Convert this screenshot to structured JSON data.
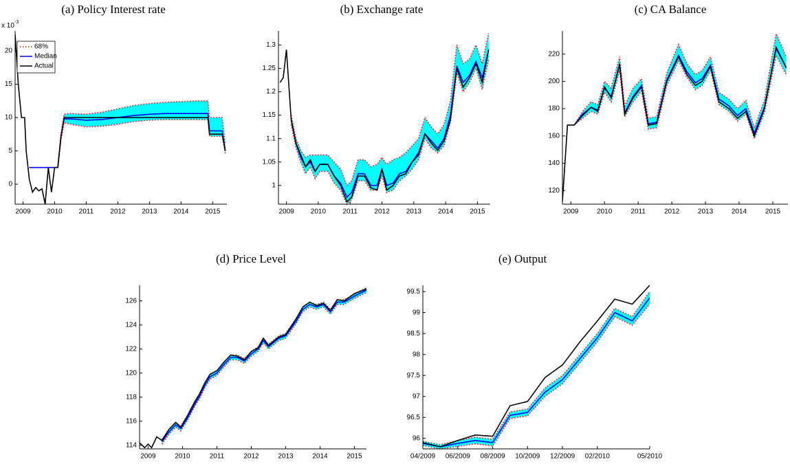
{
  "chart_data": [
    {
      "type": "line",
      "title": "(a) Policy Interest rate",
      "y_multiplier": {
        "base": "x 10",
        "exponent": "-3"
      },
      "legend": "upper left",
      "x": [
        2008.75,
        2008.85,
        2008.95,
        2009.05,
        2009.1,
        2009.2,
        2009.3,
        2009.4,
        2009.5,
        2009.6,
        2009.7,
        2009.8,
        2009.9,
        2010.0,
        2010.1,
        2010.2,
        2010.3,
        2010.5,
        2011.0,
        2011.5,
        2012.0,
        2012.5,
        2013.0,
        2013.5,
        2014.0,
        2014.5,
        2014.85,
        2014.9,
        2015.3,
        2015.4
      ],
      "xlim": [
        2008.75,
        2015.45
      ],
      "xticks": [
        2009,
        2010,
        2011,
        2012,
        2013,
        2014,
        2015
      ],
      "ylim": [
        -3,
        23
      ],
      "yticks": [
        0,
        5,
        10,
        15,
        20
      ],
      "series": [
        {
          "name": "68%",
          "color": "#ff0000",
          "fill": "#00ffff",
          "upper": [
            null,
            null,
            null,
            null,
            null,
            2.5,
            2.5,
            2.5,
            2.5,
            2.5,
            2.5,
            2.5,
            2.5,
            2.5,
            2.5,
            7.6,
            10.5,
            10.6,
            10.5,
            10.8,
            11.3,
            11.8,
            12.1,
            12.3,
            12.4,
            12.5,
            12.5,
            10,
            10,
            6
          ],
          "lower": [
            null,
            null,
            null,
            null,
            null,
            2.5,
            2.5,
            2.5,
            2.5,
            2.5,
            2.5,
            2.5,
            2.5,
            2.5,
            2.5,
            6.7,
            9.2,
            9,
            8.6,
            8.7,
            9,
            9.4,
            9.6,
            9.7,
            9.7,
            9.7,
            9.7,
            7.2,
            7.2,
            4.6
          ]
        },
        {
          "name": "Median",
          "color": "#0000ff",
          "values": [
            null,
            null,
            null,
            null,
            null,
            2.5,
            2.5,
            2.5,
            2.5,
            2.5,
            2.5,
            2.5,
            2.5,
            2.5,
            2.5,
            7.2,
            9.8,
            9.8,
            9.6,
            9.7,
            10,
            10.3,
            10.5,
            10.6,
            10.6,
            10.6,
            10.6,
            8,
            8,
            5
          ]
        },
        {
          "name": "Actual",
          "color": "#000000",
          "values": [
            22.5,
            15,
            10,
            10,
            5,
            0.7,
            -1.2,
            -0.5,
            -1,
            -0.7,
            -3,
            2.5,
            -1.2,
            2.5,
            2.5,
            7,
            10,
            10,
            10,
            10,
            10,
            10,
            10,
            10,
            10,
            10,
            10,
            7.5,
            7.5,
            5
          ]
        }
      ]
    },
    {
      "type": "line",
      "title": "(b) Exchange rate",
      "x": [
        2008.8,
        2008.9,
        2009.0,
        2009.15,
        2009.3,
        2009.45,
        2009.6,
        2009.75,
        2009.9,
        2010.05,
        2010.3,
        2010.5,
        2010.7,
        2010.9,
        2011.05,
        2011.25,
        2011.45,
        2011.65,
        2011.85,
        2012.0,
        2012.15,
        2012.35,
        2012.55,
        2012.75,
        2012.95,
        2013.15,
        2013.35,
        2013.55,
        2013.75,
        2013.95,
        2014.15,
        2014.35,
        2014.55,
        2014.75,
        2014.95,
        2015.15,
        2015.35
      ],
      "xlim": [
        2008.75,
        2015.4
      ],
      "xticks": [
        2009,
        2010,
        2011,
        2012,
        2013,
        2014,
        2015
      ],
      "ylim": [
        0.96,
        1.33
      ],
      "yticks": [
        1,
        1.05,
        1.1,
        1.15,
        1.2,
        1.25,
        1.3
      ],
      "series": [
        {
          "name": "68%",
          "color": "#ff0000",
          "fill": "#00ffff",
          "upper": [
            null,
            null,
            null,
            1.15,
            1.1,
            1.075,
            1.06,
            1.065,
            1.065,
            1.065,
            1.065,
            1.05,
            1.035,
            1.0,
            1.01,
            1.055,
            1.055,
            1.04,
            1.045,
            1.06,
            1.045,
            1.055,
            1.06,
            1.07,
            1.085,
            1.1,
            1.145,
            1.125,
            1.11,
            1.13,
            1.18,
            1.3,
            1.26,
            1.27,
            1.3,
            1.26,
            1.325
          ],
          "lower": [
            null,
            null,
            null,
            1.13,
            1.08,
            1.05,
            1.025,
            1.04,
            1.015,
            1.03,
            1.03,
            1.005,
            0.99,
            0.96,
            0.97,
            1.01,
            1.01,
            0.99,
            0.99,
            1.02,
            0.985,
            0.99,
            1.01,
            1.02,
            1.035,
            1.055,
            1.1,
            1.08,
            1.07,
            1.085,
            1.135,
            1.24,
            1.2,
            1.22,
            1.25,
            1.205,
            1.27
          ]
        },
        {
          "name": "Median",
          "color": "#0000ff",
          "values": [
            null,
            null,
            null,
            1.14,
            1.09,
            1.06,
            1.04,
            1.05,
            1.03,
            1.045,
            1.045,
            1.02,
            1.005,
            0.975,
            0.985,
            1.025,
            1.025,
            1.0,
            1.0,
            1.035,
            1.0,
            1.005,
            1.025,
            1.03,
            1.05,
            1.07,
            1.11,
            1.095,
            1.08,
            1.1,
            1.15,
            1.255,
            1.22,
            1.235,
            1.265,
            1.23,
            1.29
          ]
        },
        {
          "name": "Actual",
          "color": "#000000",
          "values": [
            1.22,
            1.23,
            1.29,
            1.14,
            1.09,
            1.065,
            1.04,
            1.055,
            1.03,
            1.045,
            1.045,
            1.02,
            1.0,
            0.965,
            0.975,
            1.02,
            1.02,
            0.995,
            0.99,
            1.035,
            0.99,
            1.0,
            1.02,
            1.025,
            1.05,
            1.065,
            1.11,
            1.09,
            1.075,
            1.095,
            1.14,
            1.25,
            1.21,
            1.23,
            1.26,
            1.22,
            1.29
          ]
        }
      ]
    },
    {
      "type": "line",
      "title": "(c) CA Balance",
      "x": [
        2008.75,
        2008.9,
        2009.1,
        2009.35,
        2009.6,
        2009.8,
        2010.0,
        2010.2,
        2010.45,
        2010.6,
        2010.85,
        2011.1,
        2011.3,
        2011.55,
        2011.85,
        2012.2,
        2012.45,
        2012.7,
        2012.9,
        2013.15,
        2013.4,
        2013.7,
        2013.95,
        2014.2,
        2014.45,
        2014.75,
        2015.1,
        2015.4
      ],
      "xlim": [
        2008.75,
        2015.45
      ],
      "xticks": [
        2009,
        2010,
        2011,
        2012,
        2013,
        2014,
        2015
      ],
      "ylim": [
        110,
        237
      ],
      "yticks": [
        120,
        140,
        160,
        180,
        200,
        220
      ],
      "series": [
        {
          "name": "68%",
          "color": "#ff0000",
          "fill": "#00ffff",
          "upper": [
            null,
            null,
            168,
            178,
            185,
            183,
            200,
            195,
            218,
            182,
            195,
            202,
            173,
            174,
            206,
            227,
            213,
            205,
            208,
            218,
            192,
            187,
            180,
            186,
            166,
            186,
            235,
            218
          ],
          "lower": [
            null,
            null,
            168,
            173,
            178,
            176,
            192,
            185,
            208,
            174,
            185,
            193,
            165,
            166,
            197,
            215,
            203,
            194,
            197,
            208,
            183,
            178,
            171,
            176,
            158,
            177,
            219,
            205
          ]
        },
        {
          "name": "Median",
          "color": "#0000ff",
          "values": [
            null,
            null,
            168,
            176,
            181,
            179,
            195,
            189,
            212,
            177,
            189,
            197,
            169,
            170,
            201,
            219,
            207,
            199,
            202,
            212,
            187,
            182,
            175,
            180,
            162,
            181,
            224,
            210
          ]
        },
        {
          "name": "Actual",
          "color": "#000000",
          "values": [
            112,
            168,
            168,
            175,
            181,
            178,
            196,
            188,
            213,
            176,
            188,
            196,
            168,
            169,
            200,
            218,
            205,
            197,
            200,
            211,
            185,
            180,
            173,
            178,
            160,
            180,
            225,
            210
          ]
        }
      ]
    },
    {
      "type": "line",
      "title": "(d) Price Level",
      "x": [
        2008.75,
        2008.9,
        2009.0,
        2009.1,
        2009.25,
        2009.4,
        2009.6,
        2009.8,
        2009.95,
        2010.15,
        2010.35,
        2010.5,
        2010.65,
        2010.8,
        2011.0,
        2011.2,
        2011.4,
        2011.6,
        2011.8,
        2012.0,
        2012.2,
        2012.35,
        2012.5,
        2012.8,
        2013.0,
        2013.3,
        2013.5,
        2013.7,
        2013.9,
        2014.1,
        2014.3,
        2014.5,
        2014.7,
        2015.0,
        2015.35
      ],
      "xlim": [
        2008.75,
        2015.35
      ],
      "xticks": [
        2009,
        2010,
        2011,
        2012,
        2013,
        2014,
        2015
      ],
      "ylim": [
        113.7,
        127.3
      ],
      "yticks": [
        114,
        116,
        118,
        120,
        122,
        124,
        126
      ],
      "series": [
        {
          "name": "68%",
          "color": "#ff0000",
          "fill": "#00ffff",
          "upper": [
            null,
            null,
            null,
            null,
            null,
            114.5,
            115.3,
            115.9,
            115.6,
            116.5,
            117.6,
            118.3,
            119.2,
            119.9,
            120.2,
            120.9,
            121.5,
            121.5,
            121.2,
            121.8,
            122.2,
            122.9,
            122.4,
            123.1,
            123.3,
            124.5,
            125.5,
            125.9,
            125.7,
            125.9,
            125.3,
            126.1,
            126.1,
            126.6,
            127.1
          ],
          "lower": [
            null,
            null,
            null,
            null,
            null,
            114.1,
            114.9,
            115.5,
            115.2,
            116.1,
            117.2,
            117.9,
            118.8,
            119.5,
            119.8,
            120.5,
            121.1,
            121.1,
            120.8,
            121.4,
            121.8,
            122.5,
            122.0,
            122.7,
            122.9,
            124.1,
            125.1,
            125.5,
            125.3,
            125.5,
            124.9,
            125.7,
            125.7,
            126.2,
            126.7
          ]
        },
        {
          "name": "Median",
          "color": "#0000ff",
          "values": [
            null,
            null,
            null,
            null,
            null,
            114.3,
            115.1,
            115.7,
            115.4,
            116.3,
            117.4,
            118.1,
            119.0,
            119.7,
            120.0,
            120.7,
            121.3,
            121.3,
            121.0,
            121.6,
            122.0,
            122.7,
            122.2,
            122.9,
            123.1,
            124.3,
            125.3,
            125.7,
            125.5,
            125.7,
            125.1,
            125.9,
            125.9,
            126.4,
            126.9
          ]
        },
        {
          "name": "Actual",
          "color": "#000000",
          "values": [
            114.2,
            113.8,
            114.1,
            113.8,
            114.7,
            114.4,
            115.3,
            115.9,
            115.5,
            116.5,
            117.6,
            118.3,
            119.2,
            119.9,
            120.2,
            120.9,
            121.5,
            121.4,
            121.1,
            121.8,
            122.1,
            122.9,
            122.3,
            123.0,
            123.2,
            124.5,
            125.5,
            125.9,
            125.6,
            125.8,
            125.2,
            126.1,
            126.0,
            126.6,
            127.0
          ]
        }
      ]
    },
    {
      "type": "line",
      "title": "(e) Output",
      "x": [
        "04/2009",
        null,
        "06/2009",
        null,
        "08/2009",
        null,
        "10/2009",
        null,
        "12/2009",
        null,
        "02/2010",
        null,
        null,
        "05/2010"
      ],
      "ylim": [
        95.75,
        99.65
      ],
      "yticks": [
        96,
        96.5,
        97,
        97.5,
        98,
        98.5,
        99,
        99.5
      ],
      "series": [
        {
          "name": "68%",
          "color": "#ff0000",
          "fill": "#00ffff",
          "upper": [
            95.93,
            95.85,
            95.95,
            96.03,
            95.98,
            96.63,
            96.7,
            97.2,
            97.5,
            98.0,
            98.5,
            99.1,
            98.9,
            99.5
          ],
          "lower": [
            95.83,
            95.75,
            95.81,
            95.87,
            95.82,
            96.47,
            96.54,
            97.0,
            97.3,
            97.8,
            98.3,
            98.9,
            98.7,
            99.2
          ]
        },
        {
          "name": "Median",
          "color": "#0000ff",
          "values": [
            95.88,
            95.8,
            95.88,
            95.95,
            95.9,
            96.55,
            96.62,
            97.1,
            97.4,
            97.9,
            98.4,
            99.0,
            98.8,
            99.35
          ]
        },
        {
          "name": "Actual",
          "color": "#000000",
          "values": [
            95.9,
            95.8,
            95.95,
            96.08,
            96.05,
            96.78,
            96.88,
            97.45,
            97.75,
            98.3,
            98.8,
            99.32,
            99.2,
            99.65
          ]
        }
      ]
    }
  ]
}
